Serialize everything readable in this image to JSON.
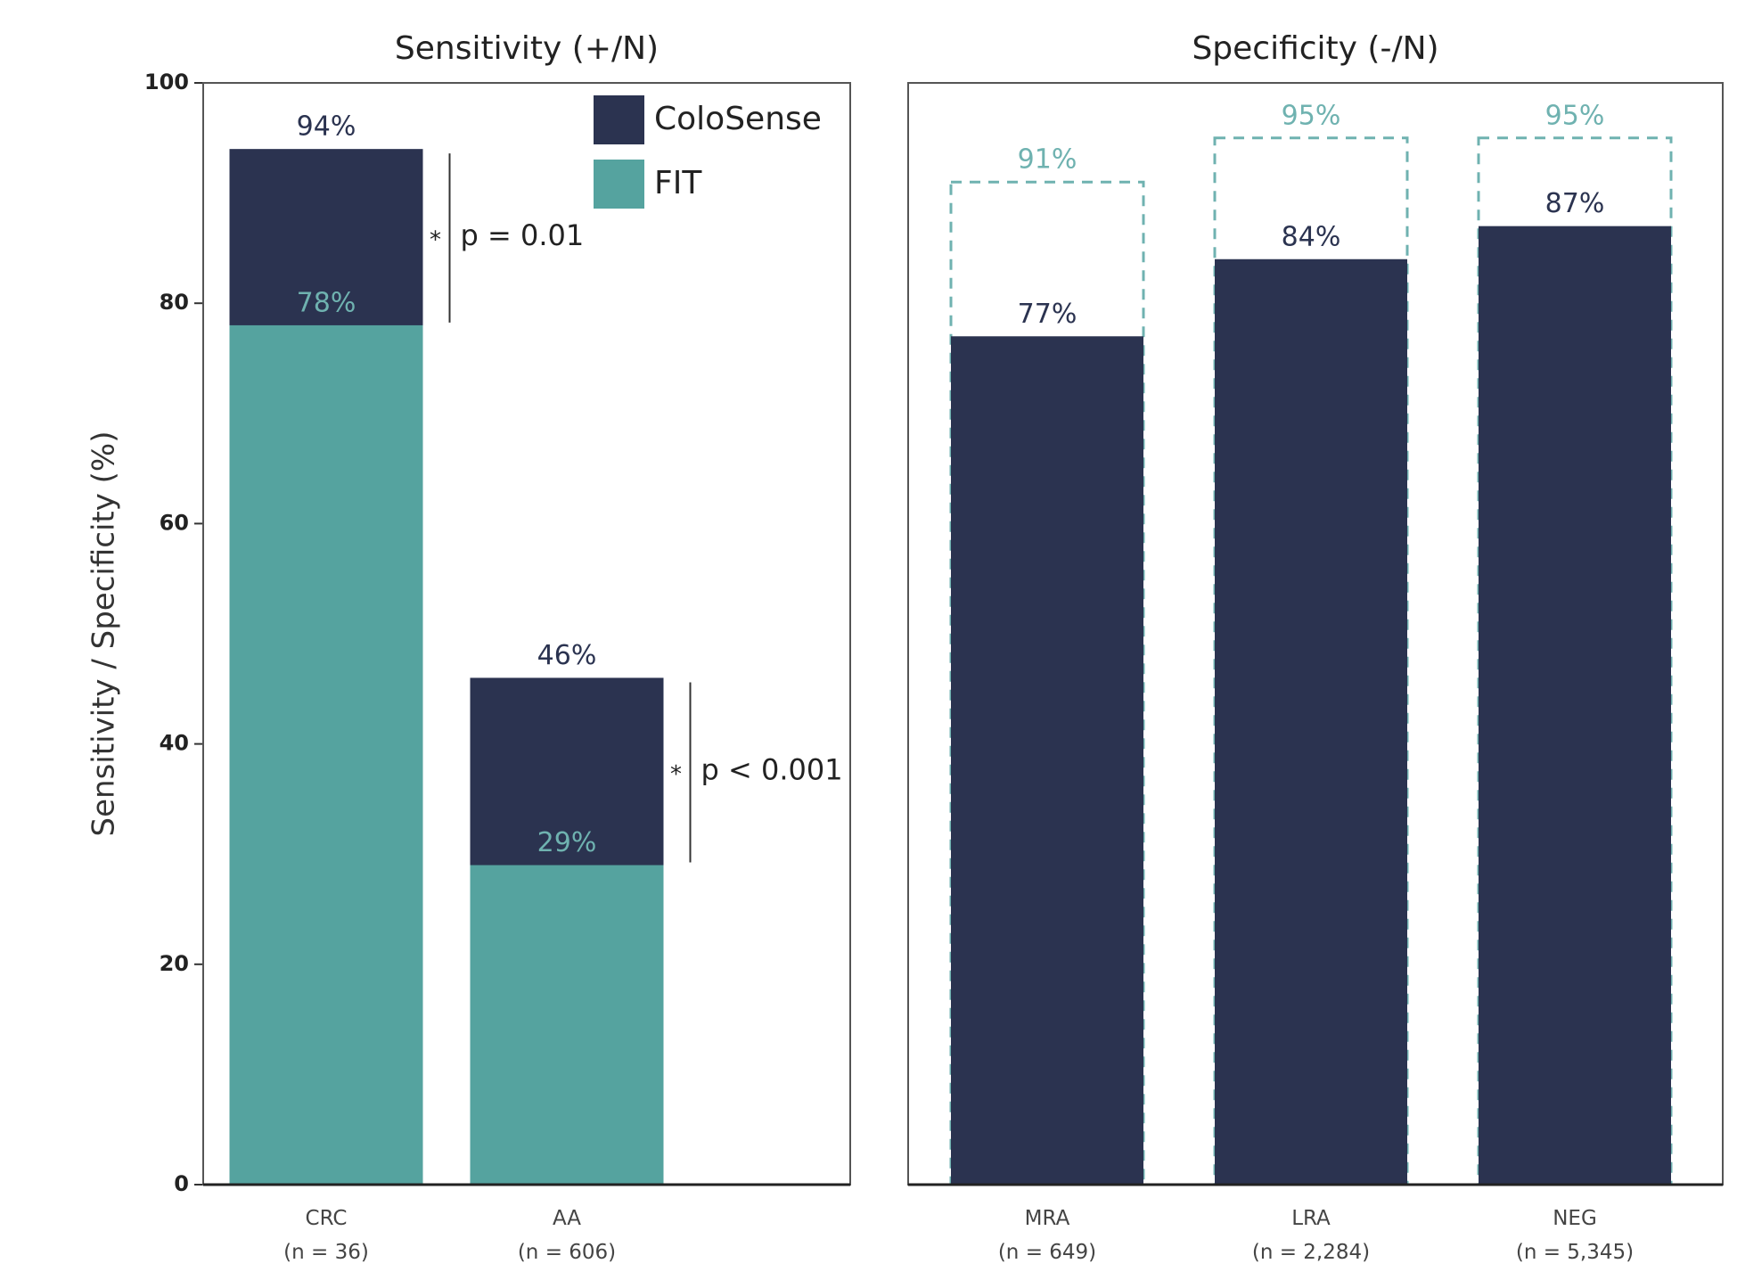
{
  "chart_data": [
    {
      "type": "bar",
      "title": "Sensitivity (+/N)",
      "ylabel": "Sensitivity / Specificity (%)",
      "categories": [
        "CRC\n(n = 36)",
        "AA\n(n = 606)"
      ],
      "series": [
        {
          "name": "ColoSense",
          "color": "#2b3350",
          "label_color": "#2b3350",
          "values": [
            94,
            46
          ],
          "value_labels": [
            "94%",
            "46%"
          ]
        },
        {
          "name": "FIT",
          "color": "#55a39f",
          "label_color": "#6fb2b0",
          "values": [
            78,
            29
          ],
          "value_labels": [
            "78%",
            "29%"
          ]
        }
      ],
      "ylim": [
        0,
        100
      ],
      "yticks": [
        0,
        20,
        40,
        60,
        80,
        100
      ],
      "legend": "upper right",
      "annotations": [
        {
          "category": 0,
          "marker": "*",
          "text": "p = 0.01"
        },
        {
          "category": 1,
          "marker": "*",
          "text": "p < 0.001"
        }
      ]
    },
    {
      "type": "bar",
      "title": "Specificity (-/N)",
      "categories": [
        "MRA\n(n = 649)",
        "LRA\n(n = 2,284)",
        "NEG\n(n = 5,345)"
      ],
      "series": [
        {
          "color": "#6fb2b0",
          "label_color": "#6fb2b0",
          "style": "dashed",
          "values": [
            91,
            95,
            95
          ],
          "value_labels": [
            "91%",
            "95%",
            "95%"
          ]
        },
        {
          "color": "#2b3350",
          "label_color": "#2b3350",
          "values": [
            77,
            84,
            87
          ],
          "value_labels": [
            "77%",
            "84%",
            "87%"
          ]
        }
      ],
      "ylim": [
        0,
        100
      ]
    }
  ]
}
